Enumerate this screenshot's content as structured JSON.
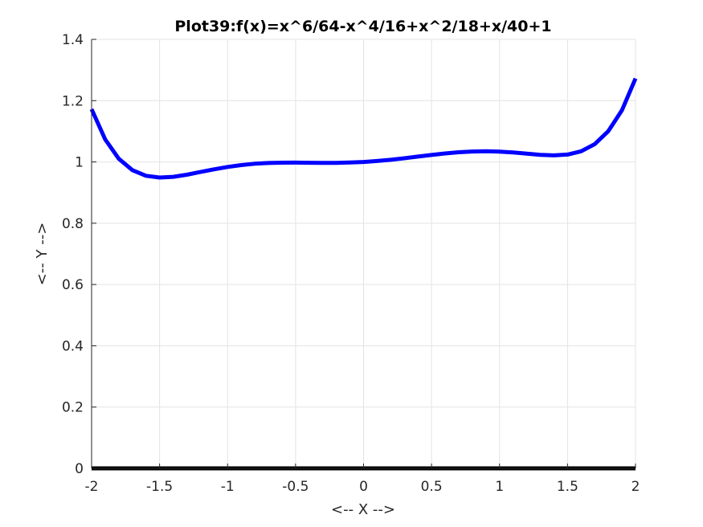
{
  "chart_data": {
    "type": "line",
    "title": "Plot39:f(x)=x^6/64-x^4/16+x^2/18+x/40+1",
    "xlabel": "<-- X -->",
    "ylabel": "<-- Y -->",
    "xlim": [
      -2,
      2
    ],
    "ylim": [
      0,
      1.4
    ],
    "xticks": [
      "-2",
      "-1.5",
      "-1",
      "-0.5",
      "0",
      "0.5",
      "1",
      "1.5",
      "2"
    ],
    "yticks": [
      "0",
      "0.2",
      "0.4",
      "0.6",
      "0.8",
      "1",
      "1.2",
      "1.4"
    ],
    "grid": true,
    "series": [
      {
        "color": "#0000ff",
        "x": [
          -2,
          -1.9,
          -1.8,
          -1.7,
          -1.6,
          -1.5,
          -1.4,
          -1.3,
          -1.2,
          -1.1,
          -1,
          -0.9,
          -0.8,
          -0.7,
          -0.6,
          -0.5,
          -0.4,
          -0.3,
          -0.2,
          -0.1,
          0,
          0.1,
          0.2,
          0.3,
          0.4,
          0.5,
          0.6,
          0.7,
          0.8,
          0.9,
          1,
          1.1,
          1.2,
          1.3,
          1.4,
          1.5,
          1.6,
          1.7,
          1.8,
          1.9,
          2
        ],
        "y": [
          1.1722,
          1.0736,
          1.0103,
          0.9732,
          0.9548,
          0.9491,
          0.9514,
          0.9583,
          0.9671,
          0.9759,
          0.9837,
          0.9898,
          0.9941,
          0.9966,
          0.9976,
          0.9977,
          0.9974,
          0.997,
          0.9971,
          0.998,
          1.0,
          1.003,
          1.0071,
          1.012,
          1.0174,
          1.0227,
          1.0276,
          1.0316,
          1.0341,
          1.0348,
          1.0337,
          1.0309,
          1.0271,
          1.0233,
          1.0214,
          1.0241,
          1.0348,
          1.0582,
          1.1003,
          1.1686,
          1.2722
        ]
      },
      {
        "color": "#000000",
        "x": [
          -2,
          2
        ],
        "y": [
          0,
          0
        ]
      }
    ]
  }
}
